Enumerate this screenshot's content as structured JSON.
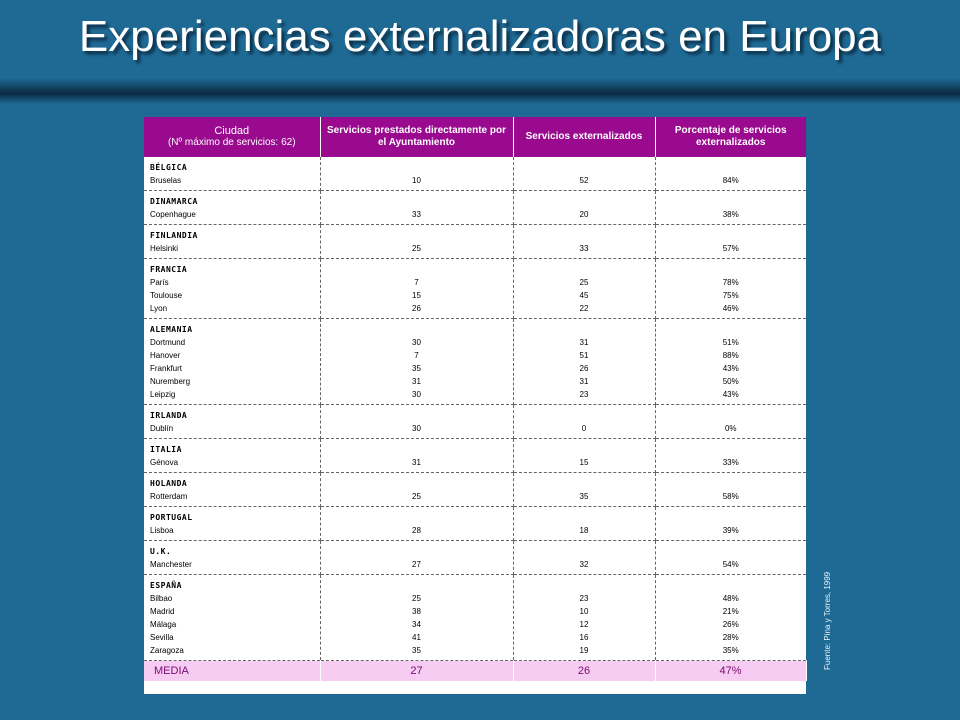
{
  "title": "Experiencias externalizadoras en Europa",
  "source": "Fuente: Pina y Torres, 1999",
  "header": {
    "col1_main": "Ciudad",
    "col1_sub": "(Nº máximo de servicios: 62)",
    "col2": "Servicios prestados directamente por el Ayuntamiento",
    "col3": "Servicios externalizados",
    "col4": "Porcentaje de servicios externalizados"
  },
  "groups": [
    {
      "country": "BÉLGICA",
      "cities": [
        "Bruselas"
      ],
      "direct": [
        "10"
      ],
      "ext": [
        "52"
      ],
      "pct": [
        "84%"
      ]
    },
    {
      "country": "DINAMARCA",
      "cities": [
        "Copenhague"
      ],
      "direct": [
        "33"
      ],
      "ext": [
        "20"
      ],
      "pct": [
        "38%"
      ]
    },
    {
      "country": "FINLANDIA",
      "cities": [
        "Helsinki"
      ],
      "direct": [
        "25"
      ],
      "ext": [
        "33"
      ],
      "pct": [
        "57%"
      ]
    },
    {
      "country": "FRANCIA",
      "cities": [
        "París",
        "Toulouse",
        "Lyon"
      ],
      "direct": [
        "7",
        "15",
        "26"
      ],
      "ext": [
        "25",
        "45",
        "22"
      ],
      "pct": [
        "78%",
        "75%",
        "46%"
      ]
    },
    {
      "country": "ALEMANIA",
      "cities": [
        "Dortmund",
        "Hanover",
        "Frankfurt",
        "Nuremberg",
        "Leipzig"
      ],
      "direct": [
        "30",
        "7",
        "35",
        "31",
        "30"
      ],
      "ext": [
        "31",
        "51",
        "26",
        "31",
        "23"
      ],
      "pct": [
        "51%",
        "88%",
        "43%",
        "50%",
        "43%"
      ]
    },
    {
      "country": "IRLANDA",
      "cities": [
        "Dublín"
      ],
      "direct": [
        "30"
      ],
      "ext": [
        "0"
      ],
      "pct": [
        "0%"
      ]
    },
    {
      "country": "ITALIA",
      "cities": [
        "Génova"
      ],
      "direct": [
        "31"
      ],
      "ext": [
        "15"
      ],
      "pct": [
        "33%"
      ]
    },
    {
      "country": "HOLANDA",
      "cities": [
        "Rotterdam"
      ],
      "direct": [
        "25"
      ],
      "ext": [
        "35"
      ],
      "pct": [
        "58%"
      ]
    },
    {
      "country": "PORTUGAL",
      "cities": [
        "Lisboa"
      ],
      "direct": [
        "28"
      ],
      "ext": [
        "18"
      ],
      "pct": [
        "39%"
      ]
    },
    {
      "country": "U.K.",
      "cities": [
        "Manchester"
      ],
      "direct": [
        "27"
      ],
      "ext": [
        "32"
      ],
      "pct": [
        "54%"
      ]
    },
    {
      "country": "ESPAÑA",
      "cities": [
        "Bilbao",
        "Madrid",
        "Málaga",
        "Sevilla",
        "Zaragoza"
      ],
      "direct": [
        "25",
        "38",
        "34",
        "41",
        "35"
      ],
      "ext": [
        "23",
        "10",
        "12",
        "16",
        "19"
      ],
      "pct": [
        "48%",
        "21%",
        "26%",
        "28%",
        "35%"
      ]
    }
  ],
  "media": {
    "label": "MEDIA",
    "direct": "27",
    "ext": "26",
    "pct": "47%"
  },
  "colors": {
    "background": "#1f6a95",
    "header": "#990a8f",
    "media_row": "#f6ccf2"
  }
}
